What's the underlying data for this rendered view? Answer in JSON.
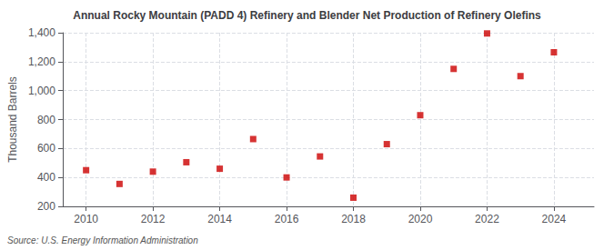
{
  "chart_data": {
    "type": "scatter",
    "title": "Annual Rocky Mountain (PADD 4) Refinery and Blender Net Production of Refinery Olefins",
    "ylabel": "Thousand Barrels",
    "annotation": "Source: U.S. Energy Information Administration",
    "x": [
      2010,
      2011,
      2012,
      2013,
      2014,
      2015,
      2016,
      2017,
      2018,
      2019,
      2020,
      2021,
      2022,
      2023,
      2024
    ],
    "values": [
      450,
      355,
      440,
      505,
      460,
      665,
      400,
      545,
      260,
      630,
      830,
      1150,
      1395,
      1100,
      1265
    ],
    "color": "#cc0000",
    "marker": "square",
    "xlim": [
      2009.3,
      2025.2
    ],
    "xticks": [
      2010,
      2012,
      2014,
      2016,
      2018,
      2020,
      2022,
      2024
    ],
    "ylim": [
      200,
      1400
    ],
    "yticks": [
      200,
      400,
      600,
      800,
      {
        "value": 1000,
        "label": "1,000"
      },
      {
        "value": 1200,
        "label": "1,200"
      },
      {
        "value": 1400,
        "label": "1,400"
      }
    ],
    "grid": true
  }
}
